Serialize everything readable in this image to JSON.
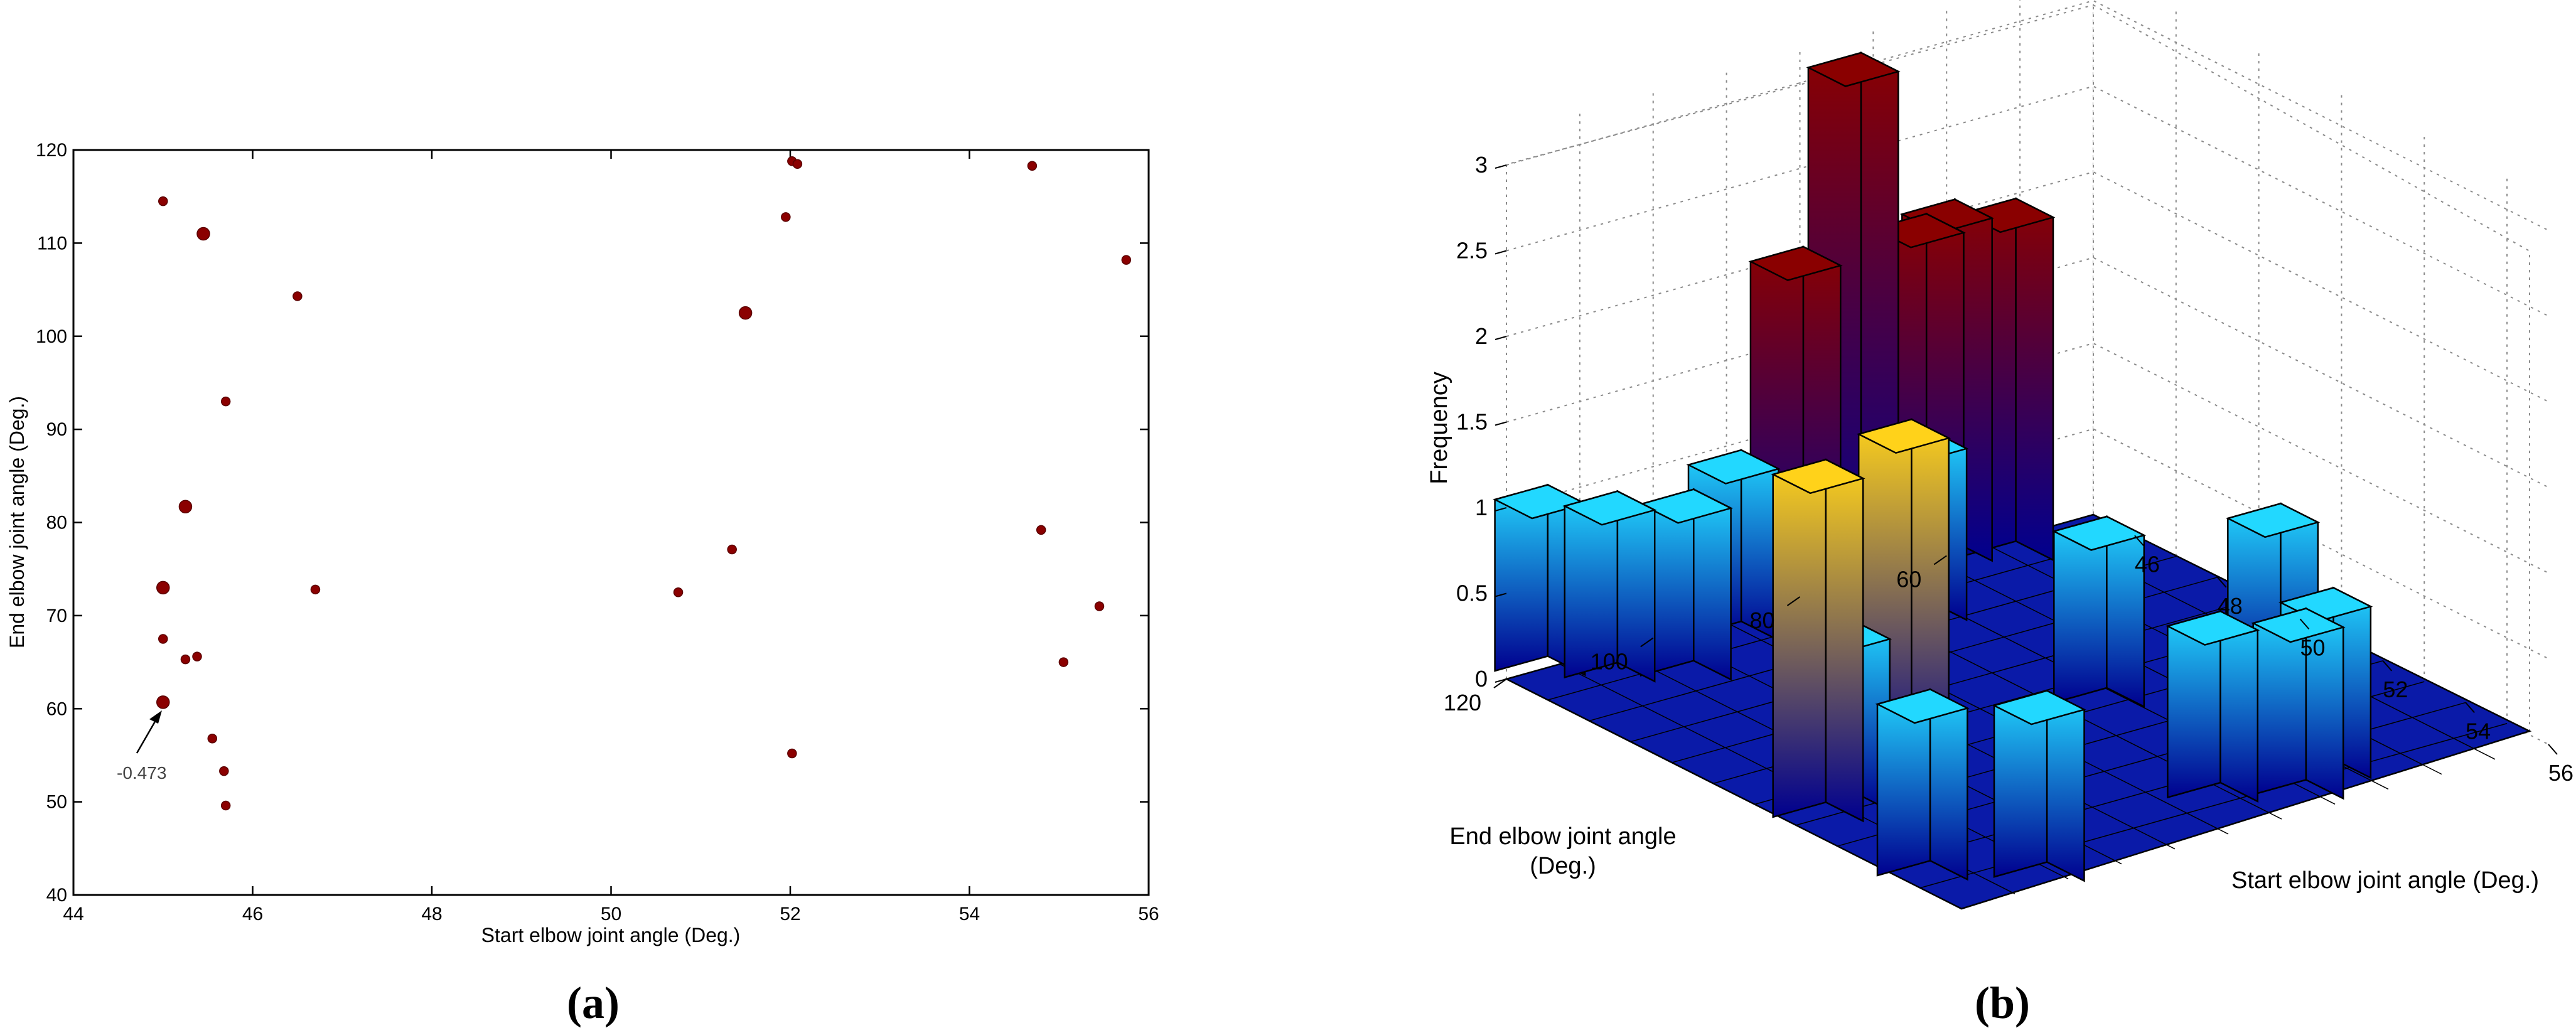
{
  "chart_data": [
    {
      "type": "scatter",
      "panel_label": "(a)",
      "xlabel": "Start elbow joint angle (Deg.)",
      "ylabel": "End elbow joint angle (Deg.)",
      "xlim": [
        44,
        56
      ],
      "ylim": [
        40,
        120
      ],
      "xticks": [
        "44",
        "46",
        "48",
        "50",
        "52",
        "54",
        "56"
      ],
      "yticks": [
        "40",
        "50",
        "60",
        "70",
        "80",
        "90",
        "100",
        "110",
        "120"
      ],
      "marker_color": "#8b0000",
      "grid": false,
      "points": [
        {
          "x": 45.0,
          "y": 114.5,
          "size": "small"
        },
        {
          "x": 45.45,
          "y": 111.0,
          "size": "large"
        },
        {
          "x": 46.5,
          "y": 104.3,
          "size": "small"
        },
        {
          "x": 45.7,
          "y": 93.0,
          "size": "small"
        },
        {
          "x": 45.25,
          "y": 81.7,
          "size": "large"
        },
        {
          "x": 45.0,
          "y": 73.0,
          "size": "large"
        },
        {
          "x": 46.7,
          "y": 72.8,
          "size": "small"
        },
        {
          "x": 45.0,
          "y": 67.5,
          "size": "small"
        },
        {
          "x": 45.25,
          "y": 65.3,
          "size": "small"
        },
        {
          "x": 45.38,
          "y": 65.6,
          "size": "small"
        },
        {
          "x": 45.0,
          "y": 60.7,
          "size": "large"
        },
        {
          "x": 45.55,
          "y": 56.8,
          "size": "small"
        },
        {
          "x": 45.68,
          "y": 53.3,
          "size": "small"
        },
        {
          "x": 45.7,
          "y": 49.6,
          "size": "small"
        },
        {
          "x": 50.75,
          "y": 72.5,
          "size": "small"
        },
        {
          "x": 51.35,
          "y": 77.1,
          "size": "small"
        },
        {
          "x": 51.5,
          "y": 102.5,
          "size": "large"
        },
        {
          "x": 51.95,
          "y": 112.8,
          "size": "small"
        },
        {
          "x": 52.02,
          "y": 118.8,
          "size": "small"
        },
        {
          "x": 52.08,
          "y": 118.5,
          "size": "small"
        },
        {
          "x": 52.02,
          "y": 55.2,
          "size": "small"
        },
        {
          "x": 54.7,
          "y": 118.3,
          "size": "small"
        },
        {
          "x": 55.75,
          "y": 108.2,
          "size": "small"
        },
        {
          "x": 54.8,
          "y": 79.2,
          "size": "small"
        },
        {
          "x": 55.45,
          "y": 71.0,
          "size": "small"
        },
        {
          "x": 55.05,
          "y": 65.0,
          "size": "small"
        }
      ],
      "annotation": {
        "text": "-0.473",
        "x": 45.0,
        "y": 60.7
      }
    },
    {
      "type": "bar3d",
      "panel_label": "(b)",
      "xlabel": "Start elbow joint angle (Deg.)",
      "ylabel_line1": "End elbow joint angle",
      "ylabel_line2": "(Deg.)",
      "zlabel": "Frequency",
      "xticks": [
        "46",
        "48",
        "50",
        "52",
        "54",
        "56"
      ],
      "yticks": [
        "60",
        "80",
        "100",
        "120"
      ],
      "zticks": [
        "0",
        "0.5",
        "1",
        "1.5",
        "2",
        "2.5",
        "3"
      ],
      "zlim": [
        0,
        3.2
      ],
      "colors": {
        "floor": "#0a1aa8",
        "low": "#00008f",
        "cyan": "#22d8ff",
        "yellow": "#ffd21a",
        "red": "#8a0000"
      },
      "bars": [
        {
          "x": 45.1,
          "y": 116,
          "z": 1
        },
        {
          "x": 45.9,
          "y": 111,
          "z": 1
        },
        {
          "x": 46.5,
          "y": 104,
          "z": 1
        },
        {
          "x": 45.7,
          "y": 93,
          "z": 1
        },
        {
          "x": 45.25,
          "y": 82,
          "z": 2
        },
        {
          "x": 45.05,
          "y": 73,
          "z": 3
        },
        {
          "x": 46.7,
          "y": 73,
          "z": 1
        },
        {
          "x": 45.05,
          "y": 67,
          "z": 1
        },
        {
          "x": 45.3,
          "y": 65.5,
          "z": 2
        },
        {
          "x": 45.1,
          "y": 60.5,
          "z": 2
        },
        {
          "x": 45.6,
          "y": 55,
          "z": 2
        },
        {
          "x": 50.9,
          "y": 72.5,
          "z": 1
        },
        {
          "x": 51.5,
          "y": 102.5,
          "z": 2
        },
        {
          "x": 52.0,
          "y": 117,
          "z": 2
        },
        {
          "x": 51.9,
          "y": 112.8,
          "z": 1
        },
        {
          "x": 52.0,
          "y": 55,
          "z": 1
        },
        {
          "x": 54.7,
          "y": 118,
          "z": 1
        },
        {
          "x": 55.75,
          "y": 108,
          "z": 1
        },
        {
          "x": 54.8,
          "y": 79,
          "z": 1
        },
        {
          "x": 55.45,
          "y": 71,
          "z": 1
        },
        {
          "x": 55.05,
          "y": 65,
          "z": 1
        }
      ]
    }
  ]
}
